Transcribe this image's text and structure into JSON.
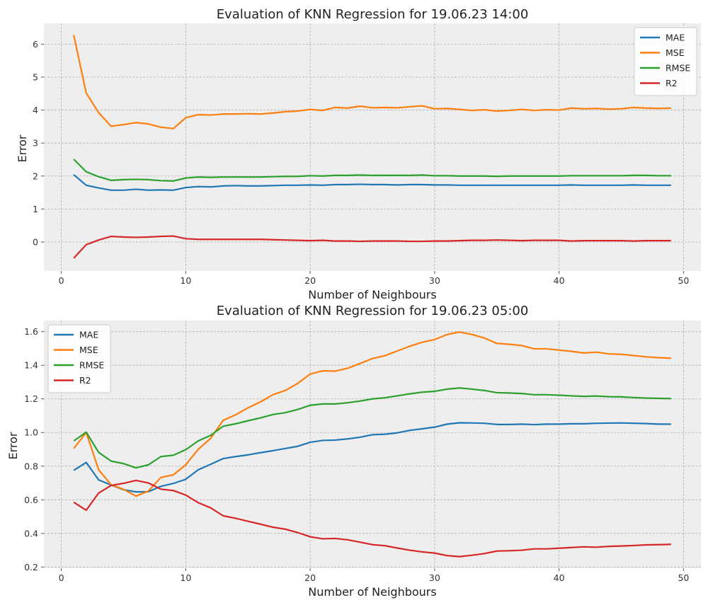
{
  "chart_data": [
    {
      "type": "line",
      "title": "Evaluation of KNN Regression for 19.06.23 14:00",
      "xlabel": "Number of Neighbours",
      "ylabel": "Error",
      "xlim": [
        -1.4,
        51.4
      ],
      "ylim": [
        -0.88,
        6.63
      ],
      "xticks": [
        0,
        10,
        20,
        30,
        40,
        50
      ],
      "yticks": [
        0,
        1,
        2,
        3,
        4,
        5,
        6
      ],
      "grid": true,
      "legend": "top-right",
      "x": [
        1,
        2,
        3,
        4,
        5,
        6,
        7,
        8,
        9,
        10,
        11,
        12,
        13,
        14,
        15,
        16,
        17,
        18,
        19,
        20,
        21,
        22,
        23,
        24,
        25,
        26,
        27,
        28,
        29,
        30,
        31,
        32,
        33,
        34,
        35,
        36,
        37,
        38,
        39,
        40,
        41,
        42,
        43,
        44,
        45,
        46,
        47,
        48,
        49
      ],
      "series": [
        {
          "name": "MAE",
          "color": "#1f77b4",
          "values": [
            2.04,
            1.72,
            1.64,
            1.57,
            1.57,
            1.6,
            1.57,
            1.58,
            1.57,
            1.65,
            1.68,
            1.67,
            1.7,
            1.71,
            1.7,
            1.7,
            1.71,
            1.72,
            1.72,
            1.73,
            1.72,
            1.74,
            1.74,
            1.75,
            1.74,
            1.74,
            1.73,
            1.74,
            1.74,
            1.73,
            1.73,
            1.72,
            1.72,
            1.72,
            1.72,
            1.72,
            1.72,
            1.72,
            1.72,
            1.72,
            1.73,
            1.72,
            1.72,
            1.72,
            1.72,
            1.73,
            1.72,
            1.72,
            1.72
          ]
        },
        {
          "name": "MSE",
          "color": "#ff7f0e",
          "values": [
            6.27,
            4.52,
            3.92,
            3.51,
            3.56,
            3.62,
            3.58,
            3.48,
            3.44,
            3.77,
            3.86,
            3.85,
            3.88,
            3.88,
            3.89,
            3.88,
            3.91,
            3.95,
            3.97,
            4.02,
            3.99,
            4.08,
            4.06,
            4.12,
            4.07,
            4.08,
            4.07,
            4.1,
            4.13,
            4.04,
            4.05,
            4.02,
            3.99,
            4.01,
            3.97,
            3.99,
            4.02,
            3.99,
            4.01,
            4.0,
            4.06,
            4.04,
            4.05,
            4.03,
            4.04,
            4.08,
            4.06,
            4.05,
            4.06
          ]
        },
        {
          "name": "RMSE",
          "color": "#2ca02c",
          "values": [
            2.51,
            2.13,
            1.98,
            1.87,
            1.89,
            1.9,
            1.89,
            1.86,
            1.85,
            1.94,
            1.97,
            1.96,
            1.97,
            1.97,
            1.97,
            1.97,
            1.98,
            1.99,
            1.99,
            2.01,
            2.0,
            2.02,
            2.02,
            2.03,
            2.02,
            2.02,
            2.02,
            2.02,
            2.03,
            2.01,
            2.01,
            2.0,
            2.0,
            2.0,
            1.99,
            2.0,
            2.0,
            2.0,
            2.0,
            2.0,
            2.01,
            2.01,
            2.01,
            2.01,
            2.01,
            2.02,
            2.02,
            2.01,
            2.01
          ]
        },
        {
          "name": "R2",
          "color": "#d62728",
          "values": [
            -0.49,
            -0.08,
            0.06,
            0.17,
            0.15,
            0.14,
            0.15,
            0.17,
            0.18,
            0.1,
            0.08,
            0.08,
            0.08,
            0.08,
            0.08,
            0.08,
            0.07,
            0.06,
            0.05,
            0.04,
            0.05,
            0.03,
            0.03,
            0.02,
            0.03,
            0.03,
            0.03,
            0.02,
            0.02,
            0.03,
            0.03,
            0.04,
            0.05,
            0.05,
            0.06,
            0.05,
            0.04,
            0.05,
            0.05,
            0.05,
            0.03,
            0.04,
            0.04,
            0.04,
            0.04,
            0.03,
            0.04,
            0.04,
            0.04
          ]
        }
      ]
    },
    {
      "type": "line",
      "title": "Evaluation of KNN Regression for 19.06.23 05:00",
      "xlabel": "Number of Neighbours",
      "ylabel": "Error",
      "xlim": [
        -1.4,
        51.4
      ],
      "ylim": [
        0.193,
        1.666
      ],
      "xticks": [
        0,
        10,
        20,
        30,
        40,
        50
      ],
      "yticks": [
        0.2,
        0.4,
        0.6,
        0.8,
        1.0,
        1.2,
        1.4,
        1.6
      ],
      "ytick_labels": [
        "0.2",
        "0.4",
        "0.6",
        "0.8",
        "1.0",
        "1.2",
        "1.4",
        "1.6"
      ],
      "grid": true,
      "legend": "top-left",
      "x": [
        1,
        2,
        3,
        4,
        5,
        6,
        7,
        8,
        9,
        10,
        11,
        12,
        13,
        14,
        15,
        16,
        17,
        18,
        19,
        20,
        21,
        22,
        23,
        24,
        25,
        26,
        27,
        28,
        29,
        30,
        31,
        32,
        33,
        34,
        35,
        36,
        37,
        38,
        39,
        40,
        41,
        42,
        43,
        44,
        45,
        46,
        47,
        48,
        49
      ],
      "series": [
        {
          "name": "MAE",
          "color": "#1f77b4",
          "values": [
            0.775,
            0.822,
            0.718,
            0.688,
            0.66,
            0.647,
            0.648,
            0.68,
            0.697,
            0.722,
            0.778,
            0.811,
            0.845,
            0.857,
            0.867,
            0.88,
            0.892,
            0.905,
            0.918,
            0.942,
            0.953,
            0.955,
            0.962,
            0.972,
            0.987,
            0.99,
            0.998,
            1.013,
            1.022,
            1.032,
            1.05,
            1.058,
            1.057,
            1.055,
            1.048,
            1.048,
            1.05,
            1.047,
            1.05,
            1.05,
            1.052,
            1.052,
            1.055,
            1.056,
            1.057,
            1.055,
            1.053,
            1.05,
            1.05
          ]
        },
        {
          "name": "MSE",
          "color": "#ff7f0e",
          "values": [
            0.905,
            1.0,
            0.778,
            0.69,
            0.662,
            0.622,
            0.652,
            0.733,
            0.748,
            0.808,
            0.9,
            0.965,
            1.072,
            1.105,
            1.147,
            1.182,
            1.225,
            1.25,
            1.292,
            1.348,
            1.367,
            1.365,
            1.382,
            1.41,
            1.44,
            1.457,
            1.485,
            1.513,
            1.537,
            1.553,
            1.583,
            1.598,
            1.583,
            1.562,
            1.53,
            1.525,
            1.517,
            1.498,
            1.498,
            1.49,
            1.483,
            1.473,
            1.478,
            1.468,
            1.465,
            1.458,
            1.45,
            1.445,
            1.442
          ]
        },
        {
          "name": "RMSE",
          "color": "#2ca02c",
          "values": [
            0.95,
            1.002,
            0.882,
            0.83,
            0.815,
            0.79,
            0.808,
            0.857,
            0.865,
            0.898,
            0.95,
            0.983,
            1.037,
            1.052,
            1.07,
            1.087,
            1.107,
            1.118,
            1.137,
            1.162,
            1.17,
            1.17,
            1.177,
            1.187,
            1.2,
            1.207,
            1.218,
            1.23,
            1.24,
            1.245,
            1.258,
            1.265,
            1.258,
            1.25,
            1.237,
            1.235,
            1.232,
            1.225,
            1.225,
            1.222,
            1.218,
            1.215,
            1.217,
            1.213,
            1.212,
            1.208,
            1.205,
            1.203,
            1.202
          ]
        },
        {
          "name": "R2",
          "color": "#d62728",
          "values": [
            0.585,
            0.538,
            0.64,
            0.685,
            0.698,
            0.715,
            0.7,
            0.663,
            0.655,
            0.628,
            0.583,
            0.552,
            0.505,
            0.49,
            0.472,
            0.455,
            0.437,
            0.425,
            0.405,
            0.38,
            0.368,
            0.37,
            0.362,
            0.348,
            0.333,
            0.327,
            0.313,
            0.3,
            0.29,
            0.283,
            0.268,
            0.262,
            0.27,
            0.28,
            0.295,
            0.297,
            0.3,
            0.308,
            0.308,
            0.312,
            0.316,
            0.32,
            0.318,
            0.323,
            0.325,
            0.328,
            0.332,
            0.333,
            0.335
          ]
        }
      ]
    }
  ]
}
